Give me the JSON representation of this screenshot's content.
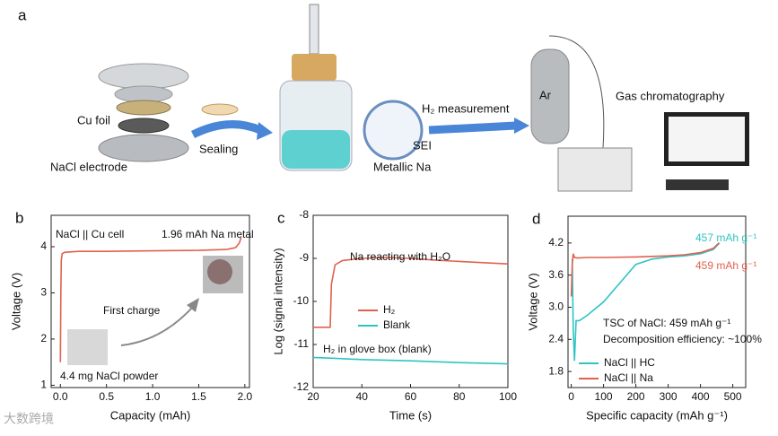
{
  "panel_a": {
    "letter": "a",
    "labels": [
      "Cu foil",
      "NaCl electrode",
      "Sealing",
      "SEI",
      "Metallic Na",
      "H₂ measurement",
      "Ar",
      "Gas chromatography"
    ]
  },
  "watermark": "大数跨境",
  "chart_data": [
    {
      "type": "line",
      "letter": "b",
      "xlabel": "Capacity (mAh)",
      "ylabel": "Voltage (V)",
      "xlim": [
        -0.1,
        2.05
      ],
      "ylim": [
        0.95,
        4.68
      ],
      "xticks": [
        {
          "value": 0,
          "label": "0.0"
        },
        {
          "value": 0.5,
          "label": "0.5"
        },
        {
          "value": 1,
          "label": "1.0"
        },
        {
          "value": 1.5,
          "label": "1.5"
        },
        {
          "value": 2,
          "label": "2.0"
        }
      ],
      "yticks": [
        1,
        2,
        3,
        4
      ],
      "series": [
        {
          "color": "#e0614f",
          "x": [
            0,
            0.005,
            0.01,
            0.02,
            0.05,
            0.2,
            0.5,
            1.0,
            1.5,
            1.8,
            1.9,
            1.94,
            1.96
          ],
          "values": [
            1.5,
            3.0,
            3.7,
            3.85,
            3.88,
            3.9,
            3.9,
            3.91,
            3.92,
            3.94,
            3.98,
            4.08,
            4.2
          ]
        }
      ],
      "annotations": [
        "NaCl || Cu cell",
        "1.96 mAh Na metal",
        "First charge",
        "4.4 mg NaCl powder"
      ]
    },
    {
      "type": "line",
      "letter": "c",
      "xlabel": "Time (s)",
      "ylabel": "Log (signal intensity)",
      "xlim": [
        20,
        100
      ],
      "ylim": [
        -12,
        -8
      ],
      "xticks": [
        20,
        40,
        60,
        80,
        100
      ],
      "yticks": [
        -12,
        -11,
        -10,
        -9,
        -8
      ],
      "legend": "center",
      "series": [
        {
          "name": "H₂",
          "color": "#e0614f",
          "x": [
            20,
            27,
            27.5,
            29,
            32,
            40,
            50,
            60,
            70,
            80,
            90,
            100
          ],
          "values": [
            -10.6,
            -10.6,
            -9.6,
            -9.15,
            -9.05,
            -9.0,
            -8.98,
            -9.0,
            -9.04,
            -9.07,
            -9.1,
            -9.13
          ]
        },
        {
          "name": "Blank",
          "color": "#2ec4c4",
          "x": [
            20,
            40,
            60,
            80,
            100
          ],
          "values": [
            -11.3,
            -11.35,
            -11.38,
            -11.42,
            -11.45
          ]
        }
      ],
      "annotations": [
        "Na reacting with H₂O",
        "H₂ in glove box (blank)"
      ]
    },
    {
      "type": "line",
      "letter": "d",
      "xlabel": "Specific capacity (mAh g⁻¹)",
      "ylabel": "Voltage (V)",
      "xlim": [
        -10,
        540
      ],
      "ylim": [
        1.5,
        4.7
      ],
      "xticks": [
        0,
        100,
        200,
        300,
        400,
        500
      ],
      "yticks": [
        1.8,
        2.4,
        {
          "value": 3,
          "label": "3.0"
        },
        3.6,
        4.2
      ],
      "legend": "lower left",
      "series": [
        {
          "name": "NaCl || HC",
          "color": "#2ec4c4",
          "x": [
            3,
            6,
            10,
            15,
            25,
            50,
            100,
            150,
            200,
            250,
            300,
            350,
            400,
            440,
            459
          ],
          "values": [
            3.9,
            2.6,
            2.0,
            2.75,
            2.75,
            2.85,
            3.1,
            3.45,
            3.8,
            3.9,
            3.94,
            3.96,
            4.0,
            4.08,
            4.2
          ]
        },
        {
          "name": "NaCl || Na",
          "color": "#e0614f",
          "x": [
            0,
            3,
            6,
            10,
            20,
            50,
            100,
            200,
            300,
            350,
            400,
            440,
            457
          ],
          "values": [
            3.2,
            3.8,
            4.0,
            3.93,
            3.92,
            3.93,
            3.93,
            3.94,
            3.96,
            3.98,
            4.02,
            4.1,
            4.2
          ]
        }
      ],
      "annotations": [
        "457 mAh g⁻¹",
        "459 mAh g⁻¹",
        "TSC of NaCl: 459 mAh g⁻¹",
        "Decomposition efficiency: ~100%"
      ]
    }
  ]
}
